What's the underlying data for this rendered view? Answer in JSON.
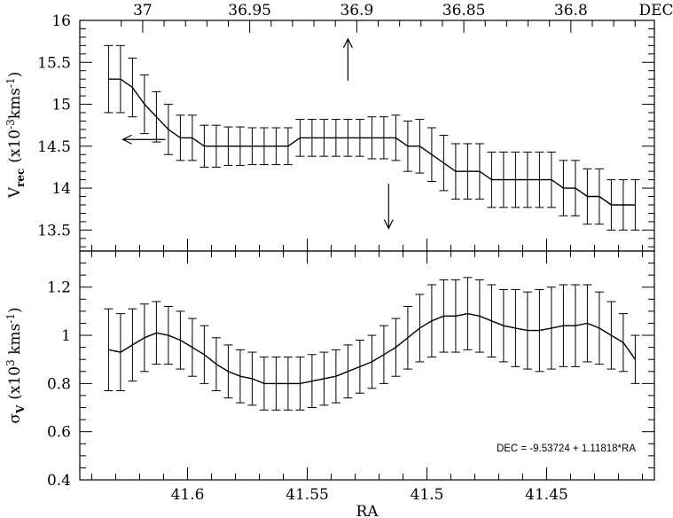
{
  "chart_data": [
    {
      "name": "top-panel",
      "type": "line",
      "ylabel": {
        "main": "V",
        "sub": "rec",
        "units_pre": "(x10",
        "units_sup": "-3",
        "units_post": "kms",
        "units_sup2": "-1",
        "units_close": ")"
      },
      "top_axis_label": "DEC",
      "top_tick_labels": [
        "37",
        "36.95",
        "36.9",
        "36.85",
        "36.8"
      ],
      "top_tick_values": [
        37,
        36.95,
        36.9,
        36.85,
        36.8
      ],
      "xlim": [
        41.645,
        41.405
      ],
      "ylim": [
        13.25,
        16.0
      ],
      "yticks": [
        13.5,
        14,
        14.5,
        15,
        15.5,
        16
      ],
      "ytick_labels": [
        "13.5",
        "14",
        "14.5",
        "15",
        "15.5",
        "16"
      ],
      "arrows": [
        {
          "x": 41.533,
          "from_y": 15.28,
          "to_y": 15.78,
          "direction": "up"
        },
        {
          "x": 41.516,
          "from_y": 14.05,
          "to_y": 13.52,
          "direction": "down"
        },
        {
          "x": 41.627,
          "from_y": 14.58,
          "to_y": 14.58,
          "direction": "left"
        }
      ],
      "series": [
        {
          "x": [
            41.633,
            41.628,
            41.623,
            41.618,
            41.613,
            41.608,
            41.603,
            41.598,
            41.593,
            41.588,
            41.583,
            41.578,
            41.573,
            41.568,
            41.563,
            41.558,
            41.553,
            41.548,
            41.543,
            41.538,
            41.533,
            41.528,
            41.523,
            41.518,
            41.513,
            41.508,
            41.503,
            41.498,
            41.493,
            41.488,
            41.483,
            41.478,
            41.473,
            41.468,
            41.463,
            41.458,
            41.453,
            41.448,
            41.443,
            41.438,
            41.433,
            41.428,
            41.423,
            41.418,
            41.413
          ],
          "y": [
            15.3,
            15.3,
            15.2,
            15.0,
            14.85,
            14.7,
            14.6,
            14.6,
            14.5,
            14.5,
            14.5,
            14.5,
            14.5,
            14.5,
            14.5,
            14.5,
            14.6,
            14.6,
            14.6,
            14.6,
            14.6,
            14.6,
            14.6,
            14.6,
            14.6,
            14.5,
            14.5,
            14.4,
            14.3,
            14.2,
            14.2,
            14.2,
            14.1,
            14.1,
            14.1,
            14.1,
            14.1,
            14.1,
            14.0,
            14.0,
            13.9,
            13.9,
            13.8,
            13.8,
            13.8
          ],
          "err": [
            0.4,
            0.4,
            0.35,
            0.35,
            0.3,
            0.3,
            0.27,
            0.27,
            0.25,
            0.25,
            0.23,
            0.23,
            0.22,
            0.22,
            0.22,
            0.22,
            0.22,
            0.22,
            0.22,
            0.22,
            0.22,
            0.22,
            0.25,
            0.25,
            0.27,
            0.3,
            0.32,
            0.32,
            0.33,
            0.33,
            0.33,
            0.33,
            0.33,
            0.33,
            0.33,
            0.33,
            0.33,
            0.33,
            0.33,
            0.33,
            0.33,
            0.33,
            0.3,
            0.3,
            0.3
          ]
        }
      ]
    },
    {
      "name": "bottom-panel",
      "type": "line",
      "xlabel": "RA",
      "ylabel": {
        "main": "σ",
        "sub": "V",
        "units_pre": "(x10",
        "units_sup": "3",
        "units_post": " kms",
        "units_sup2": "-1",
        "units_close": ")"
      },
      "xlim": [
        41.645,
        41.405
      ],
      "xticks": [
        41.6,
        41.55,
        41.5,
        41.45
      ],
      "xtick_labels": [
        "41.6",
        "41.55",
        "41.5",
        "41.45"
      ],
      "ylim": [
        0.4,
        1.35
      ],
      "yticks": [
        0.4,
        0.6,
        0.8,
        1.0,
        1.2
      ],
      "ytick_labels": [
        "0.4",
        "0.6",
        "0.8",
        "1",
        "1.2"
      ],
      "annotation": "DEC = -9.53724 + 1.11818*RA",
      "series": [
        {
          "x": [
            41.633,
            41.628,
            41.623,
            41.618,
            41.613,
            41.608,
            41.603,
            41.598,
            41.593,
            41.588,
            41.583,
            41.578,
            41.573,
            41.568,
            41.563,
            41.558,
            41.553,
            41.548,
            41.543,
            41.538,
            41.533,
            41.528,
            41.523,
            41.518,
            41.513,
            41.508,
            41.503,
            41.498,
            41.493,
            41.488,
            41.483,
            41.478,
            41.473,
            41.468,
            41.463,
            41.458,
            41.453,
            41.448,
            41.443,
            41.438,
            41.433,
            41.428,
            41.423,
            41.418,
            41.413
          ],
          "y": [
            0.94,
            0.93,
            0.96,
            0.99,
            1.01,
            1.0,
            0.98,
            0.95,
            0.92,
            0.88,
            0.85,
            0.83,
            0.82,
            0.8,
            0.8,
            0.8,
            0.8,
            0.81,
            0.82,
            0.83,
            0.85,
            0.87,
            0.89,
            0.92,
            0.95,
            0.99,
            1.03,
            1.06,
            1.08,
            1.08,
            1.09,
            1.08,
            1.06,
            1.04,
            1.03,
            1.02,
            1.02,
            1.03,
            1.04,
            1.04,
            1.05,
            1.03,
            1.0,
            0.97,
            0.9
          ],
          "err": [
            0.17,
            0.16,
            0.15,
            0.14,
            0.13,
            0.12,
            0.12,
            0.12,
            0.12,
            0.11,
            0.11,
            0.11,
            0.11,
            0.11,
            0.11,
            0.11,
            0.11,
            0.11,
            0.11,
            0.11,
            0.11,
            0.11,
            0.11,
            0.12,
            0.12,
            0.13,
            0.14,
            0.15,
            0.15,
            0.15,
            0.15,
            0.15,
            0.15,
            0.15,
            0.16,
            0.16,
            0.17,
            0.17,
            0.17,
            0.17,
            0.16,
            0.15,
            0.14,
            0.12,
            0.1
          ]
        }
      ]
    }
  ]
}
